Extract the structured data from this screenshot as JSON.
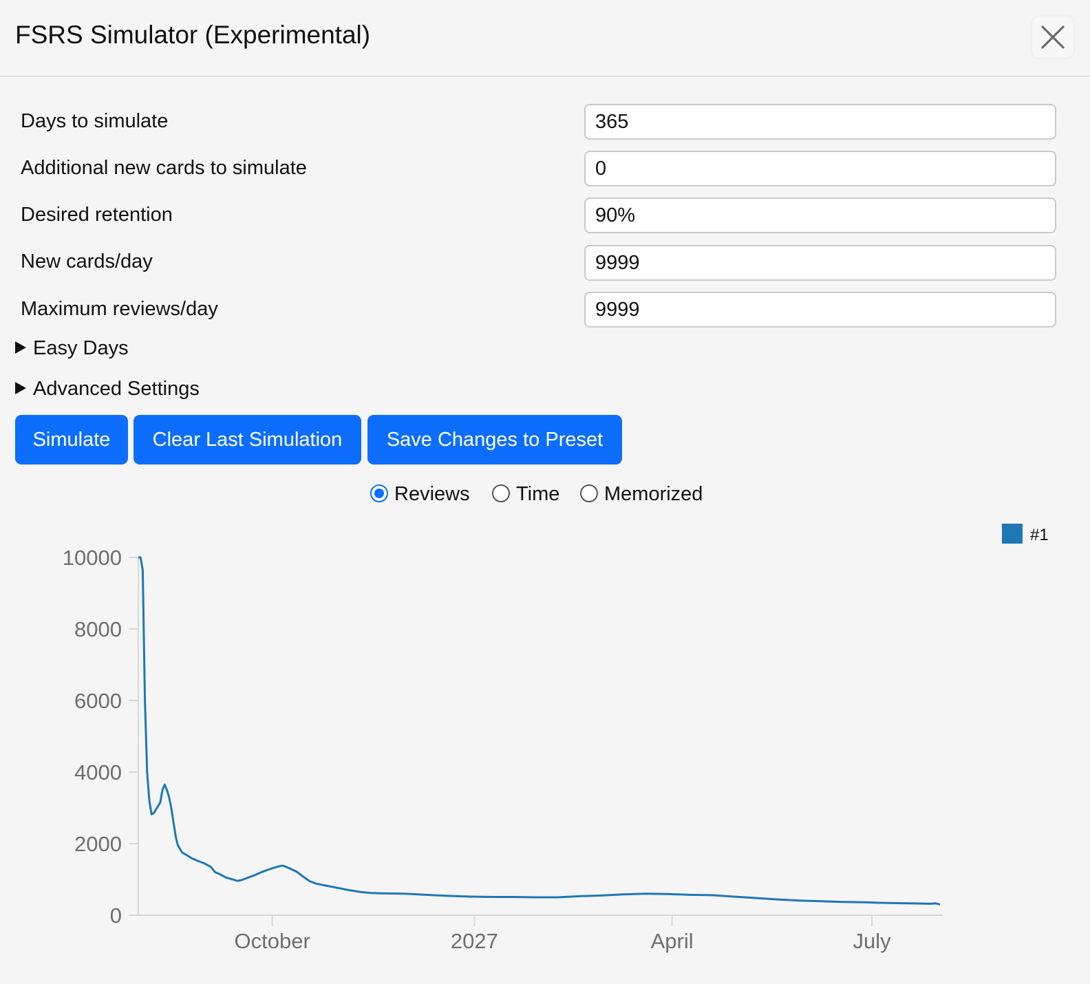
{
  "dialog": {
    "title": "FSRS Simulator (Experimental)",
    "close_icon": "close-icon"
  },
  "settings": {
    "days_to_simulate": {
      "label": "Days to simulate",
      "value": "365"
    },
    "additional_new_cards": {
      "label": "Additional new cards to simulate",
      "value": "0"
    },
    "desired_retention": {
      "label": "Desired retention",
      "value": "90%"
    },
    "new_cards_per_day": {
      "label": "New cards/day",
      "value": "9999"
    },
    "max_reviews_per_day": {
      "label": "Maximum reviews/day",
      "value": "9999"
    }
  },
  "sections": {
    "easy_days": "Easy Days",
    "advanced_settings": "Advanced Settings"
  },
  "buttons": {
    "simulate": "Simulate",
    "clear_last": "Clear Last Simulation",
    "save_preset": "Save Changes to Preset"
  },
  "view_options": {
    "selected": "Reviews",
    "options": [
      "Reviews",
      "Time",
      "Memorized"
    ]
  },
  "colors": {
    "accent": "#0d6efd",
    "series": "#1f77b4",
    "axis_text": "#6e6e6e"
  },
  "chart_data": {
    "type": "line",
    "title": "",
    "xlabel": "",
    "ylabel": "",
    "ylim": [
      0,
      10000
    ],
    "y_ticks": [
      0,
      2000,
      4000,
      6000,
      8000,
      10000
    ],
    "x_tick_labels": [
      "October",
      "2027",
      "April",
      "July"
    ],
    "x_ticks_day": [
      61,
      153,
      243,
      334
    ],
    "xlim_day": [
      0,
      365
    ],
    "legend": {
      "placement": "top-right",
      "entries": [
        "#1"
      ]
    },
    "grid": false,
    "series": [
      {
        "name": "#1",
        "points": [
          [
            0,
            10000
          ],
          [
            1,
            10000
          ],
          [
            2,
            9650
          ],
          [
            3,
            6000
          ],
          [
            4,
            4000
          ],
          [
            5,
            3200
          ],
          [
            6,
            2820
          ],
          [
            7,
            2850
          ],
          [
            8,
            2950
          ],
          [
            10,
            3150
          ],
          [
            11,
            3500
          ],
          [
            12,
            3650
          ],
          [
            13,
            3500
          ],
          [
            14,
            3300
          ],
          [
            15,
            3000
          ],
          [
            16,
            2600
          ],
          [
            17,
            2200
          ],
          [
            18,
            1950
          ],
          [
            20,
            1750
          ],
          [
            22,
            1680
          ],
          [
            24,
            1600
          ],
          [
            27,
            1520
          ],
          [
            30,
            1450
          ],
          [
            33,
            1350
          ],
          [
            35,
            1200
          ],
          [
            37,
            1150
          ],
          [
            40,
            1050
          ],
          [
            43,
            1000
          ],
          [
            45,
            960
          ],
          [
            47,
            980
          ],
          [
            50,
            1050
          ],
          [
            53,
            1120
          ],
          [
            56,
            1200
          ],
          [
            59,
            1270
          ],
          [
            62,
            1330
          ],
          [
            65,
            1380
          ],
          [
            66,
            1380
          ],
          [
            68,
            1330
          ],
          [
            72,
            1220
          ],
          [
            75,
            1080
          ],
          [
            78,
            950
          ],
          [
            81,
            880
          ],
          [
            86,
            820
          ],
          [
            91,
            760
          ],
          [
            96,
            700
          ],
          [
            101,
            650
          ],
          [
            106,
            620
          ],
          [
            111,
            610
          ],
          [
            121,
            600
          ],
          [
            131,
            570
          ],
          [
            141,
            540
          ],
          [
            151,
            520
          ],
          [
            161,
            510
          ],
          [
            171,
            510
          ],
          [
            181,
            500
          ],
          [
            191,
            500
          ],
          [
            201,
            530
          ],
          [
            211,
            550
          ],
          [
            221,
            580
          ],
          [
            231,
            600
          ],
          [
            241,
            590
          ],
          [
            251,
            570
          ],
          [
            261,
            560
          ],
          [
            271,
            520
          ],
          [
            281,
            480
          ],
          [
            291,
            440
          ],
          [
            301,
            410
          ],
          [
            311,
            390
          ],
          [
            321,
            370
          ],
          [
            331,
            360
          ],
          [
            341,
            340
          ],
          [
            351,
            330
          ],
          [
            361,
            320
          ],
          [
            363,
            330
          ],
          [
            365,
            300
          ]
        ]
      }
    ]
  }
}
